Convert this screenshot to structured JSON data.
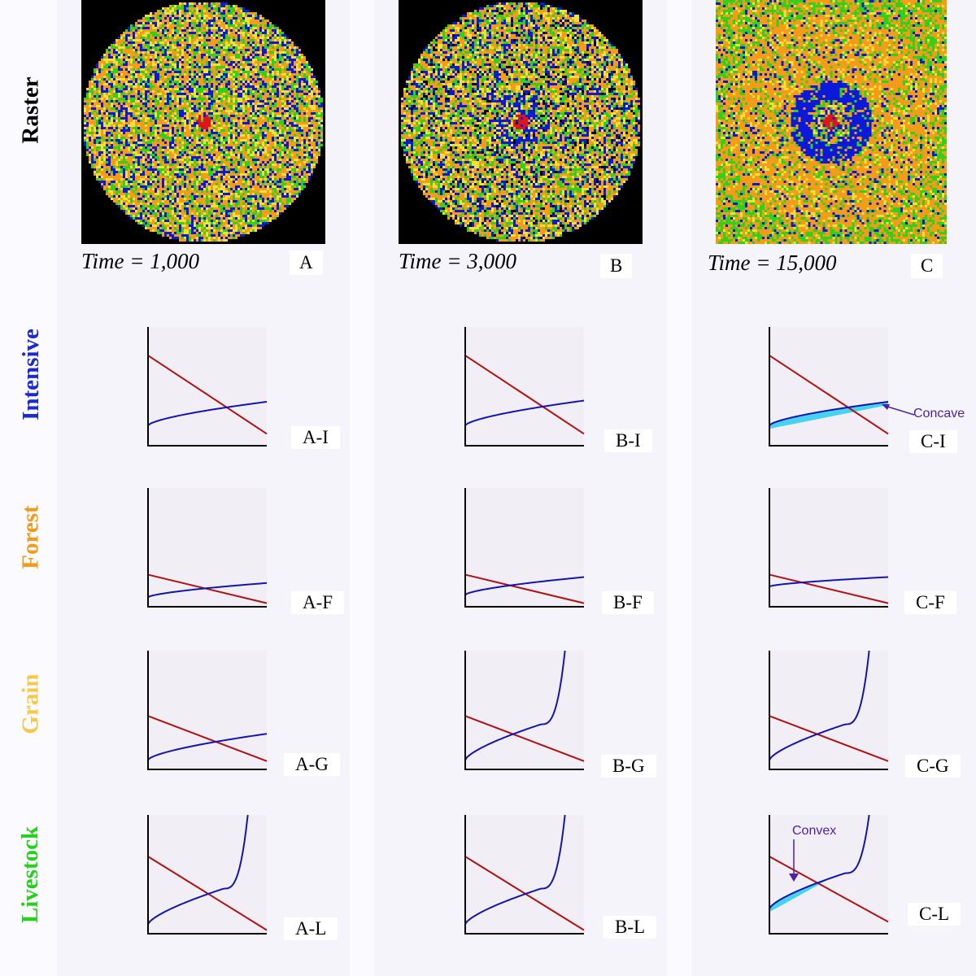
{
  "rows": {
    "raster": {
      "label": "Raster",
      "color": "#000000"
    },
    "intensive": {
      "label": "Intensive",
      "color": "#1a2ad0"
    },
    "forest": {
      "label": "Forest",
      "color": "#f39a16"
    },
    "grain": {
      "label": "Grain",
      "color": "#f5c84a"
    },
    "livestock": {
      "label": "Livestock",
      "color": "#28d01e"
    }
  },
  "columns": [
    {
      "time_label": "Time = 1,000",
      "letter": "A"
    },
    {
      "time_label": "Time = 3,000",
      "letter": "B"
    },
    {
      "time_label": "Time = 15,000",
      "letter": "C"
    }
  ],
  "raster_colors": {
    "blue": "#0a1ad8",
    "green": "#2fd21a",
    "orange": "#f49c1a",
    "yellow": "#f5e03a",
    "red": "#e0141c",
    "background": "#000000"
  },
  "plot_colors": {
    "red_line": "#b01010",
    "blue_line": "#1414b0",
    "fill": "#46d2f0",
    "axis": "#000000"
  },
  "plot_labels": {
    "A": {
      "I": "A-I",
      "F": "A-F",
      "G": "A-G",
      "L": "A-L"
    },
    "B": {
      "I": "B-I",
      "F": "B-F",
      "G": "B-G",
      "L": "B-L"
    },
    "C": {
      "I": "C-I",
      "F": "C-F",
      "G": "C-G",
      "L": "C-L"
    }
  },
  "annotations": {
    "concave": "Concave",
    "convex": "Convex"
  },
  "chart_data": [
    {
      "panel": "A-I",
      "type": "line",
      "red_line": {
        "start": 0.76,
        "end": 0.1
      },
      "blue_line": {
        "start": 0.17,
        "end": 0.37,
        "shape": "concave"
      }
    },
    {
      "panel": "B-I",
      "type": "line",
      "red_line": {
        "start": 0.76,
        "end": 0.1
      },
      "blue_line": {
        "start": 0.17,
        "end": 0.38,
        "shape": "concave"
      }
    },
    {
      "panel": "C-I",
      "type": "line",
      "red_line": {
        "start": 0.76,
        "end": 0.1
      },
      "blue_line": {
        "start": 0.17,
        "end": 0.37,
        "shape": "concave",
        "shaded": true
      }
    },
    {
      "panel": "A-F",
      "type": "line",
      "red_line": {
        "start": 0.27,
        "end": 0.03
      },
      "blue_line": {
        "start": 0.08,
        "end": 0.2,
        "shape": "concave"
      }
    },
    {
      "panel": "B-F",
      "type": "line",
      "red_line": {
        "start": 0.27,
        "end": 0.03
      },
      "blue_line": {
        "start": 0.1,
        "end": 0.25,
        "shape": "concave"
      }
    },
    {
      "panel": "C-F",
      "type": "line",
      "red_line": {
        "start": 0.27,
        "end": 0.03
      },
      "blue_line": {
        "start": 0.17,
        "end": 0.25,
        "shape": "concave"
      }
    },
    {
      "panel": "A-G",
      "type": "line",
      "red_line": {
        "start": 0.45,
        "end": 0.07
      },
      "blue_line": {
        "start": 0.08,
        "end": 0.3,
        "shape": "concave"
      }
    },
    {
      "panel": "B-G",
      "type": "line",
      "red_line": {
        "start": 0.45,
        "end": 0.07
      },
      "blue_line": {
        "start": 0.08,
        "end": 1.0,
        "shape": "convex-spike"
      }
    },
    {
      "panel": "C-G",
      "type": "line",
      "red_line": {
        "start": 0.45,
        "end": 0.07
      },
      "blue_line": {
        "start": 0.08,
        "end": 1.0,
        "shape": "convex-spike"
      }
    },
    {
      "panel": "A-L",
      "type": "line",
      "red_line": {
        "start": 0.65,
        "end": 0.03
      },
      "blue_line": {
        "start": 0.08,
        "end": 1.0,
        "shape": "convex-spike"
      }
    },
    {
      "panel": "B-L",
      "type": "line",
      "red_line": {
        "start": 0.65,
        "end": 0.03
      },
      "blue_line": {
        "start": 0.08,
        "end": 1.0,
        "shape": "convex-spike"
      }
    },
    {
      "panel": "C-L",
      "type": "line",
      "red_line": {
        "start": 0.65,
        "end": 0.1
      },
      "blue_line": {
        "start": 0.21,
        "end": 1.0,
        "shape": "convex-spike",
        "shaded": true
      }
    }
  ]
}
